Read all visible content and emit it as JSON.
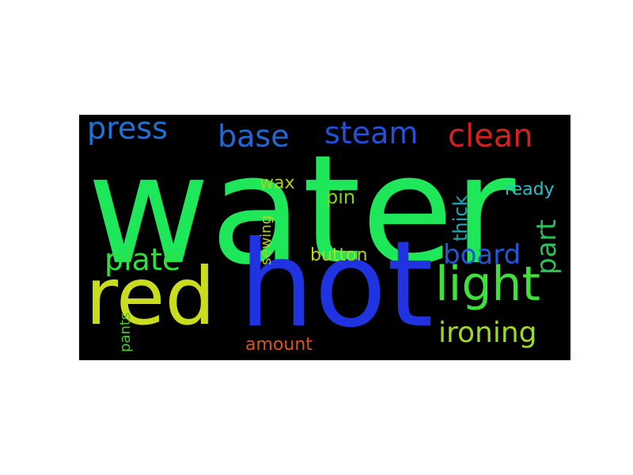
{
  "words": {
    "water": {
      "text": "water",
      "color": "#1ee85a"
    },
    "hot": {
      "text": "hot",
      "color": "#1f33e0"
    },
    "red": {
      "text": "red",
      "color": "#c9dc1e"
    },
    "light": {
      "text": "light",
      "color": "#3ee03a"
    },
    "press": {
      "text": "press",
      "color": "#1e73d4"
    },
    "base": {
      "text": "base",
      "color": "#2167d6"
    },
    "steam": {
      "text": "steam",
      "color": "#2550d8"
    },
    "clean": {
      "text": "clean",
      "color": "#d81f1f"
    },
    "plate": {
      "text": "plate",
      "color": "#2fe040"
    },
    "board": {
      "text": "board",
      "color": "#2158d6"
    },
    "ironing": {
      "text": "ironing",
      "color": "#9fd824"
    },
    "wax": {
      "text": "wax",
      "color": "#a4d41e"
    },
    "pin": {
      "text": "pin",
      "color": "#7ad81e"
    },
    "button": {
      "text": "button",
      "color": "#b8d61e"
    },
    "amount": {
      "text": "amount",
      "color": "#d8561e"
    },
    "ready": {
      "text": "ready",
      "color": "#22c2c8"
    },
    "thick": {
      "text": "thick",
      "color": "#1ea8b4"
    },
    "part": {
      "text": "part",
      "color": "#2fc05a"
    },
    "sewing": {
      "text": "sewing",
      "color": "#b0d41e"
    },
    "pants": {
      "text": "pants",
      "color": "#4cc82e"
    }
  }
}
